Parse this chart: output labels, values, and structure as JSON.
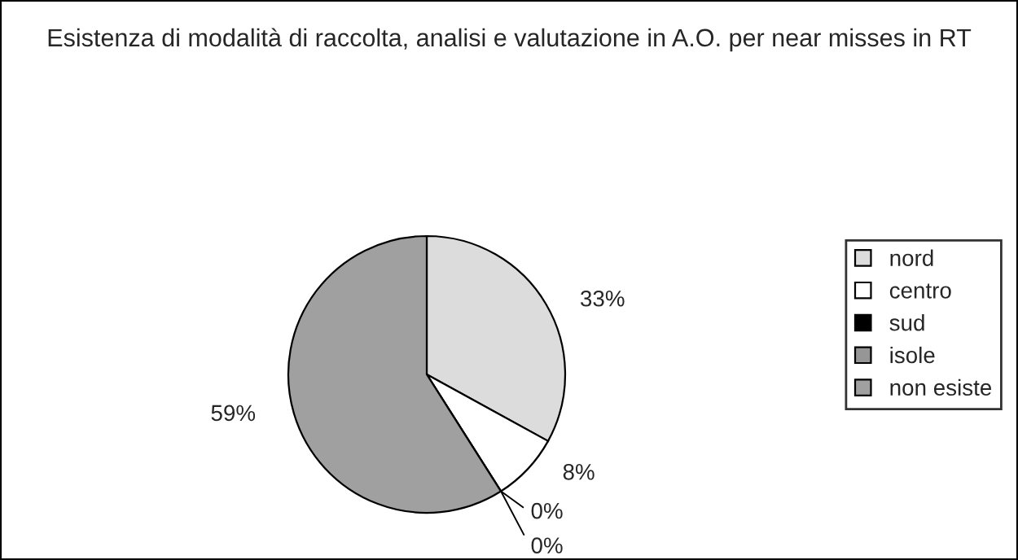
{
  "chart_data": {
    "type": "pie",
    "title": "Esistenza di modalità di raccolta, analisi e valutazione in A.O. per near misses in RT",
    "categories": [
      "nord",
      "centro",
      "sud",
      "isole",
      "non esiste"
    ],
    "values": [
      33,
      8,
      0,
      0,
      59
    ],
    "value_labels": [
      "33%",
      "8%",
      "0%",
      "0%",
      "59%"
    ],
    "colors": [
      "#dcdcdc",
      "#ffffff",
      "#000000",
      "#969696",
      "#a0a0a0"
    ],
    "legend": "right"
  }
}
